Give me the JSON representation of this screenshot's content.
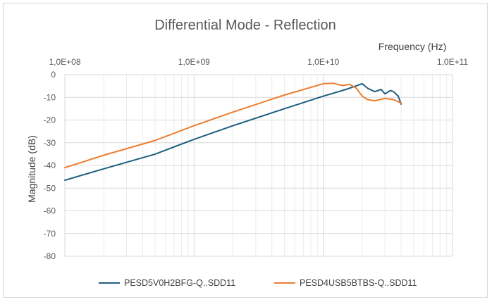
{
  "chart_data": {
    "type": "line",
    "title": "Differential Mode - Reflection",
    "xlabel": "Frequency (Hz)",
    "ylabel": "Magnitude (dB)",
    "x_scale": "log",
    "x_axis_position": "top",
    "xlim": [
      100000000,
      100000000000
    ],
    "ylim": [
      -80,
      0
    ],
    "x_tick_values": [
      100000000,
      1000000000,
      10000000000,
      100000000000
    ],
    "x_tick_labels": [
      "1,0E+08",
      "1,0E+09",
      "1,0E+10",
      "1,0E+11"
    ],
    "y_ticks": [
      0,
      -10,
      -20,
      -30,
      -40,
      -50,
      -60,
      -70,
      -80
    ],
    "grid": true,
    "legend_position": "bottom",
    "series": [
      {
        "name": "PESD5V0H2BFG-Q..SDD11",
        "color": "#1f5f7f",
        "x": [
          100000000,
          200000000,
          500000000,
          1000000000,
          2000000000,
          5000000000,
          10000000000,
          15000000000,
          20000000000,
          22000000000,
          25000000000,
          28000000000,
          30000000000,
          33000000000,
          35000000000,
          38000000000,
          40000000000
        ],
        "y": [
          -46.5,
          -41.5,
          -35,
          -28.5,
          -22.5,
          -15,
          -9.5,
          -6.5,
          -4,
          -6,
          -7.5,
          -6.5,
          -8.5,
          -7,
          -7.5,
          -9.5,
          -13
        ]
      },
      {
        "name": "PESD4USB5BTBS-Q..SDD11",
        "color": "#ed7d31",
        "x": [
          100000000,
          200000000,
          500000000,
          1000000000,
          2000000000,
          5000000000,
          10000000000,
          12000000000,
          14000000000,
          16000000000,
          18000000000,
          20000000000,
          22000000000,
          25000000000,
          30000000000,
          35000000000,
          40000000000
        ],
        "y": [
          -41,
          -35.5,
          -29,
          -22.5,
          -16.5,
          -9,
          -4,
          -3.8,
          -4.8,
          -4.3,
          -6,
          -9.5,
          -11,
          -11.5,
          -10.5,
          -11,
          -12.5
        ]
      }
    ]
  }
}
